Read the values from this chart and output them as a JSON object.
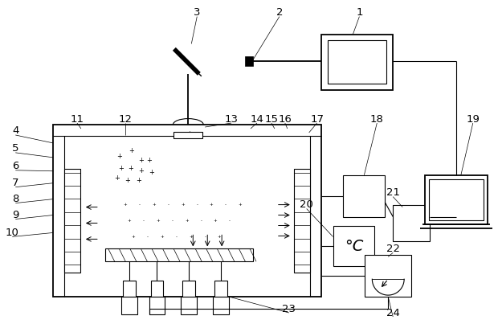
{
  "bg_color": "#ffffff",
  "line_color": "#000000",
  "fig_width": 6.2,
  "fig_height": 3.98,
  "dpi": 100
}
